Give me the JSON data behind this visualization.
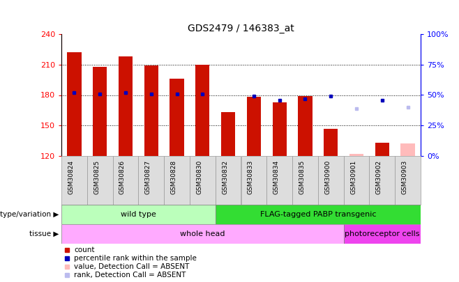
{
  "title": "GDS2479 / 146383_at",
  "samples": [
    "GSM30824",
    "GSM30825",
    "GSM30826",
    "GSM30827",
    "GSM30828",
    "GSM30830",
    "GSM30832",
    "GSM30833",
    "GSM30834",
    "GSM30835",
    "GSM30900",
    "GSM30901",
    "GSM30902",
    "GSM30903"
  ],
  "counts": [
    222,
    208,
    218,
    209,
    196,
    210,
    163,
    178,
    173,
    179,
    147,
    null,
    133,
    null
  ],
  "percentile_ranks": [
    52,
    51,
    52,
    51,
    51,
    51,
    null,
    49,
    46,
    47,
    49,
    null,
    46,
    null
  ],
  "absent_values": [
    null,
    null,
    null,
    null,
    null,
    null,
    null,
    null,
    null,
    null,
    null,
    122,
    null,
    132
  ],
  "absent_ranks": [
    null,
    null,
    null,
    null,
    null,
    null,
    null,
    null,
    null,
    null,
    null,
    39,
    null,
    40
  ],
  "ylim_left": [
    120,
    240
  ],
  "ylim_right": [
    0,
    100
  ],
  "yticks_left": [
    120,
    150,
    180,
    210,
    240
  ],
  "yticks_right": [
    0,
    25,
    50,
    75,
    100
  ],
  "ytick_labels_left": [
    "120",
    "150",
    "180",
    "210",
    "240"
  ],
  "ytick_labels_right": [
    "0%",
    "25%",
    "50%",
    "75%",
    "100%"
  ],
  "hlines": [
    150,
    180,
    210
  ],
  "color_count": "#cc1100",
  "color_rank": "#0000bb",
  "color_absent_value": "#ffbbbb",
  "color_absent_rank": "#bbbbee",
  "genotype_groups": [
    {
      "label": "wild type",
      "start": 0,
      "end": 5,
      "color": "#bbffbb"
    },
    {
      "label": "FLAG-tagged PABP transgenic",
      "start": 6,
      "end": 13,
      "color": "#33dd33"
    }
  ],
  "tissue_groups": [
    {
      "label": "whole head",
      "start": 0,
      "end": 10,
      "color": "#ffaaff"
    },
    {
      "label": "photoreceptor cells",
      "start": 11,
      "end": 13,
      "color": "#ee44ee"
    }
  ],
  "legend_items": [
    {
      "label": "count",
      "color": "#cc1100"
    },
    {
      "label": "percentile rank within the sample",
      "color": "#0000bb"
    },
    {
      "label": "value, Detection Call = ABSENT",
      "color": "#ffbbbb"
    },
    {
      "label": "rank, Detection Call = ABSENT",
      "color": "#bbbbee"
    }
  ]
}
